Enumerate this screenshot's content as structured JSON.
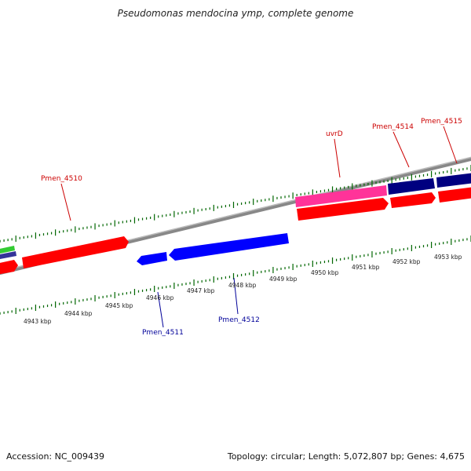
{
  "title": "Pseudomonas mendocina ymp, complete genome",
  "footer": {
    "accession": "Accession: NC_009439",
    "summary": "Topology: circular; Length: 5,072,807 bp; Genes: 4,675"
  },
  "colors": {
    "forward_gene": "#ff0000",
    "reverse_gene": "#0000ff",
    "forward_label": "#cc0000",
    "reverse_label": "#000099",
    "rrna_like": "#ff3399",
    "dark_gene": "#000080",
    "green_gene": "#33cc33",
    "backbone": "#888888",
    "ticks": "#006600"
  },
  "kbp_ticks": [
    "4943 kbp",
    "4944 kbp",
    "4945 kbp",
    "4946 kbp",
    "4947 kbp",
    "4948 kbp",
    "4949 kbp",
    "4950 kbp",
    "4951 kbp",
    "4952 kbp",
    "4953 kbp"
  ],
  "gene_labels": {
    "forward": [
      "Pmen_4510",
      "uvrD",
      "Pmen_4514",
      "Pmen_4515"
    ],
    "reverse": [
      "Pmen_4511",
      "Pmen_4512"
    ]
  }
}
